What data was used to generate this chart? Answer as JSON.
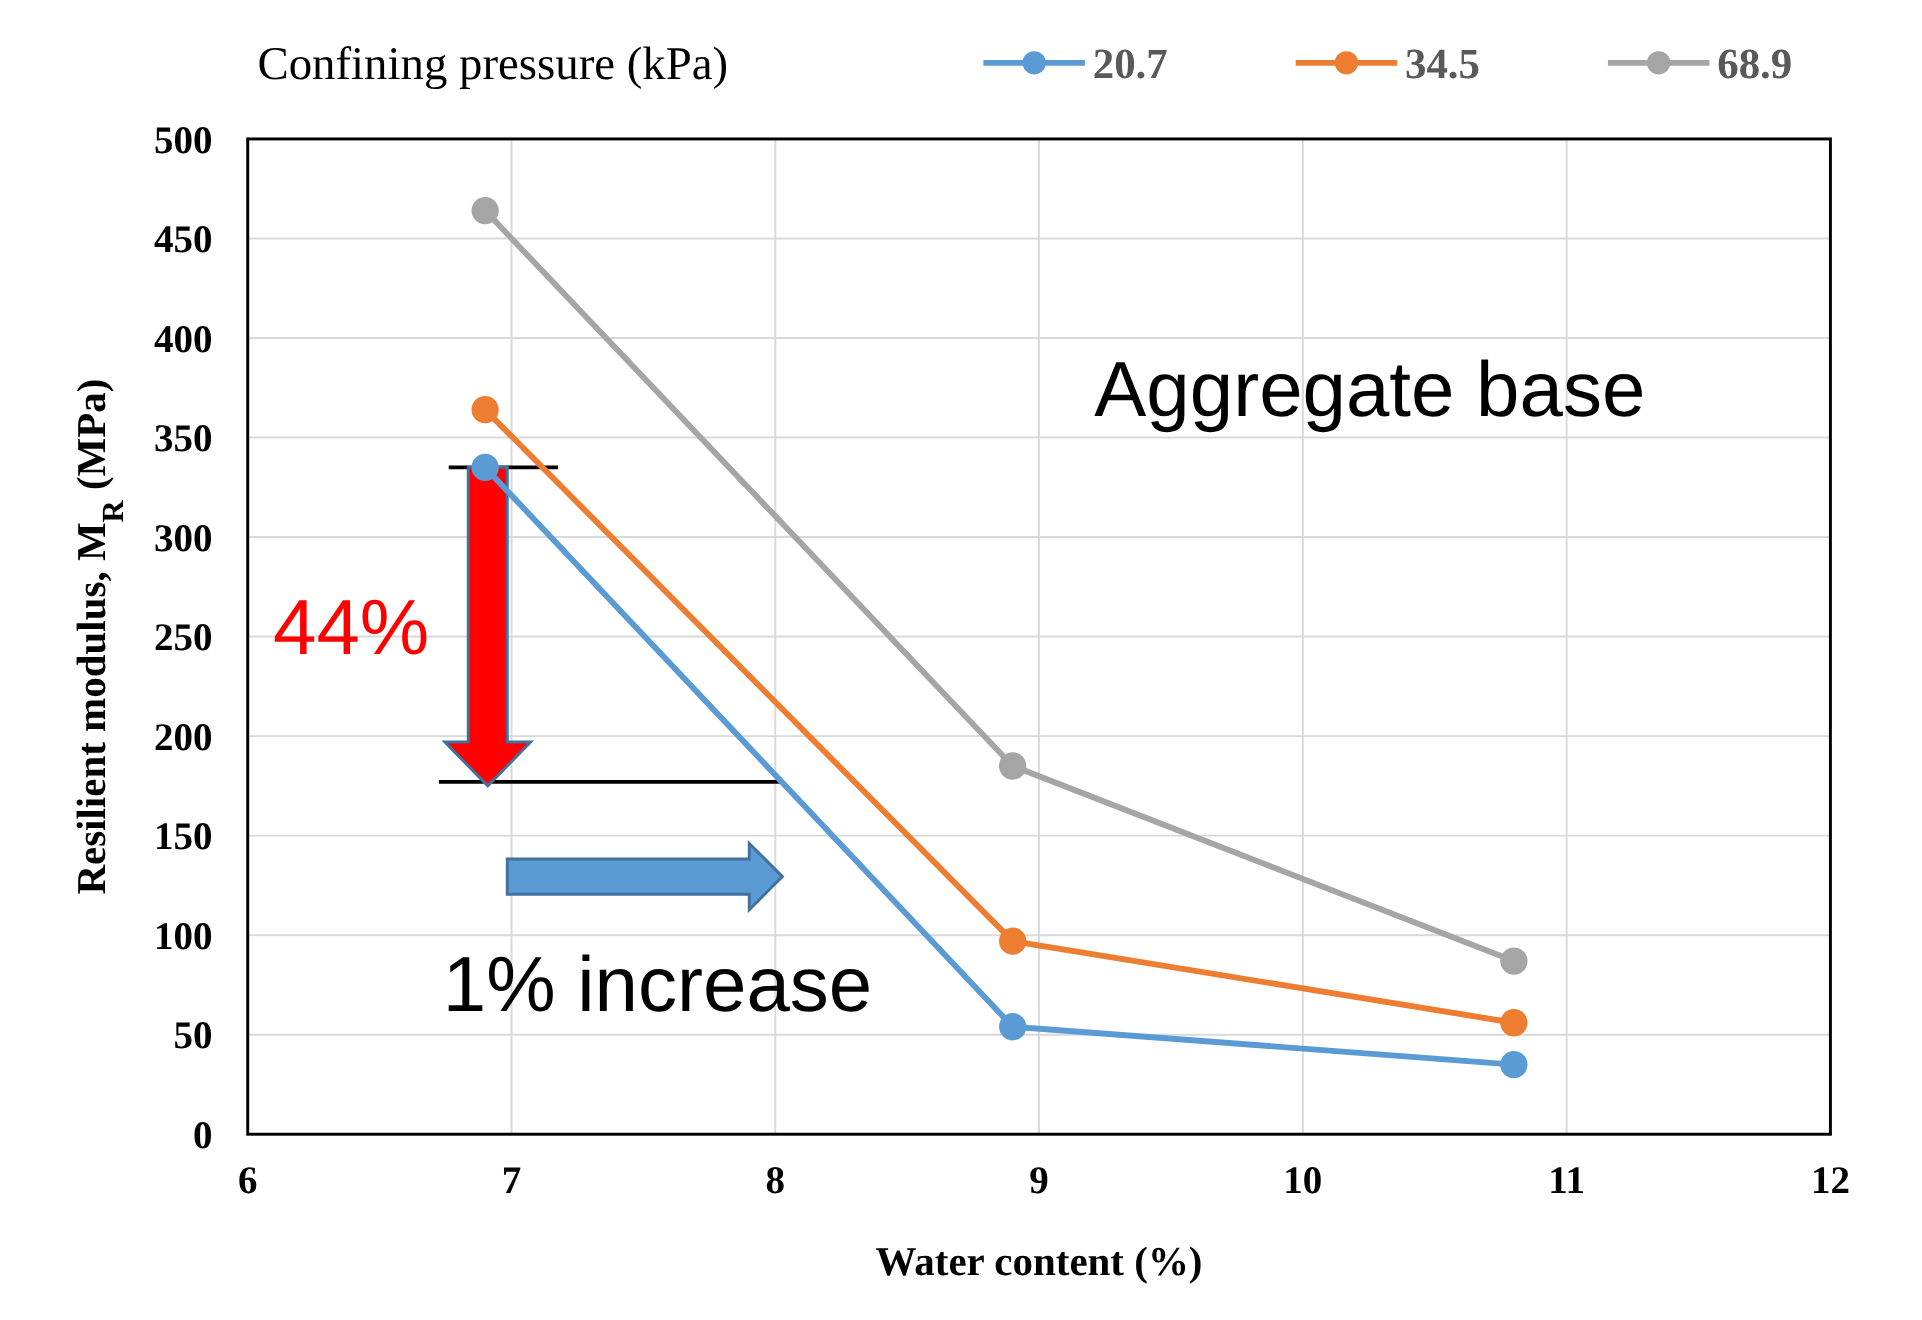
{
  "chart_data": {
    "type": "line",
    "xlabel": "Water content (%)",
    "ylabel": "Resilient modulus, M$_{R}$ (MPa)",
    "legend_title": "Confining pressure (kPa)",
    "legend": "top",
    "grid": true,
    "marker": "circle",
    "line_style": "solid",
    "xlim": [
      6,
      12
    ],
    "xticks": [
      6,
      7,
      8,
      9,
      10,
      11,
      12
    ],
    "ylim": [
      0,
      500
    ],
    "yticks": [
      0,
      50,
      100,
      150,
      200,
      250,
      300,
      350,
      400,
      450,
      500
    ],
    "series": [
      {
        "name": "20.7",
        "color": "#5b9bd5",
        "x": [
          6.9,
          8.9,
          10.8
        ],
        "values": [
          335,
          54,
          35
        ]
      },
      {
        "name": "34.5",
        "color": "#ed7d31",
        "x": [
          6.9,
          8.9,
          10.8
        ],
        "values": [
          364,
          97,
          56
        ]
      },
      {
        "name": "68.9",
        "color": "#a5a5a5",
        "x": [
          6.9,
          8.9,
          10.8
        ],
        "values": [
          464,
          185,
          87
        ]
      }
    ],
    "annotations": [
      "Aggregate base",
      "44%",
      "1% increase"
    ]
  }
}
